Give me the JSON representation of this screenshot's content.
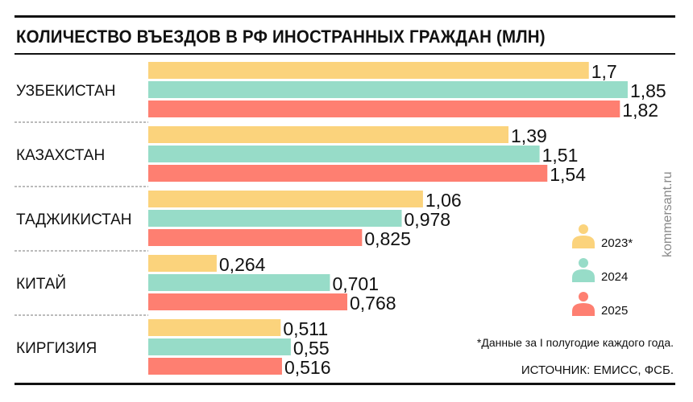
{
  "chart_data": {
    "type": "bar",
    "orientation": "horizontal",
    "title": "КОЛИЧЕСТВО ВЪЕЗДОВ В РФ ИНОСТРАННЫХ ГРАЖДАН (МЛН)",
    "categories": [
      "УЗБЕКИСТАН",
      "КАЗАХСТАН",
      "ТАДЖИКИСТАН",
      "КИТАЙ",
      "КИРГИЗИЯ"
    ],
    "series": [
      {
        "name": "2023*",
        "color": "#fbd37c",
        "values": [
          1.7,
          1.39,
          1.06,
          0.264,
          0.511
        ],
        "labels": [
          "1,7",
          "1,39",
          "1,06",
          "0,264",
          "0,511"
        ]
      },
      {
        "name": "2024",
        "color": "#97dcc8",
        "values": [
          1.85,
          1.51,
          0.978,
          0.701,
          0.55
        ],
        "labels": [
          "1,85",
          "1,51",
          "0,978",
          "0,701",
          "0,55"
        ]
      },
      {
        "name": "2025",
        "color": "#fe7f71",
        "values": [
          1.82,
          1.54,
          0.825,
          0.768,
          0.516
        ],
        "labels": [
          "1,82",
          "1,54",
          "0,825",
          "0,768",
          "0,516"
        ]
      }
    ],
    "legend_position": "right",
    "grid": false
  },
  "note": "*Данные за I полугодие каждого года.",
  "source": "ИСТОЧНИК: ЕМИСС, ФСБ.",
  "brand": "kommersant.ru"
}
